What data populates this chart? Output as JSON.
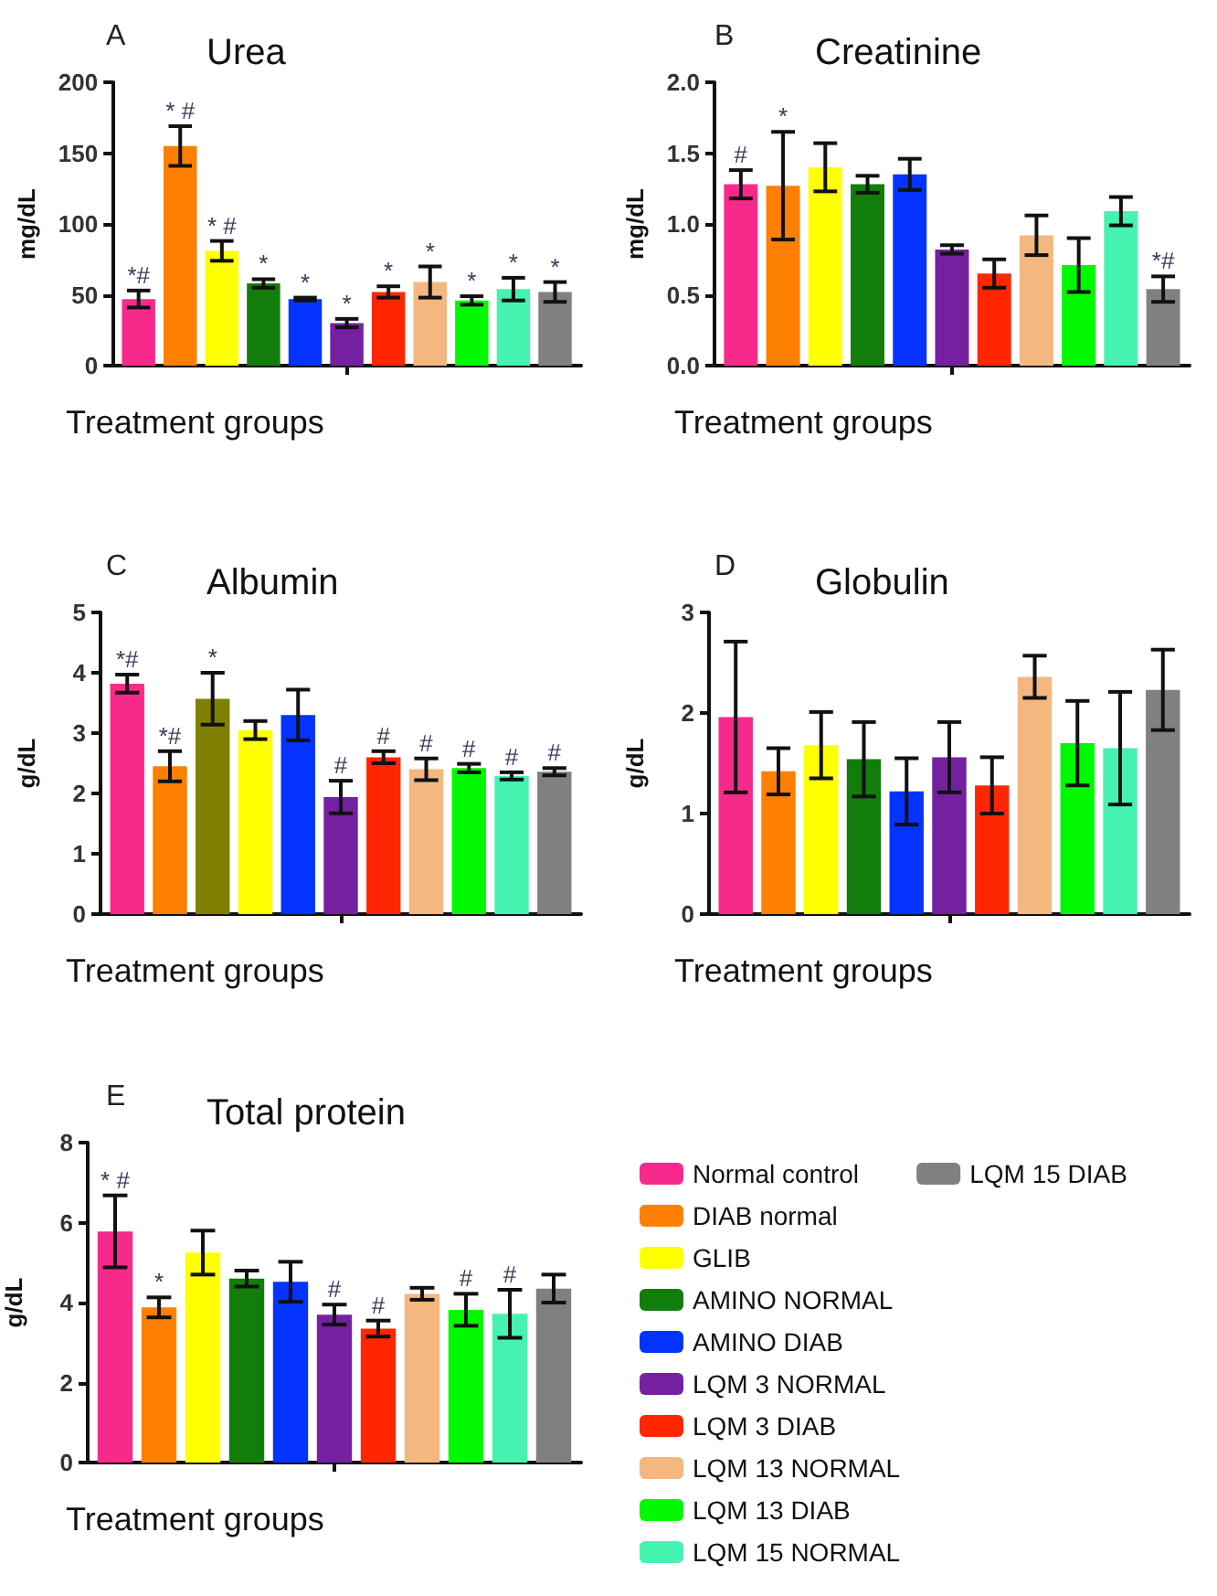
{
  "chart_data": [
    {
      "type": "bar",
      "title": "Urea",
      "ylabel": "mg/dL",
      "xlabel": "Treatment groups",
      "annotations": [
        "A"
      ],
      "categories": [
        null
      ],
      "tick_labels": "y",
      "ylim": [
        0,
        200
      ],
      "yticks": [
        0,
        50,
        100,
        150,
        200
      ],
      "series": [
        {
          "color": "#f72a8c",
          "values": [
            47
          ],
          "errors": [
            6
          ],
          "value_labels": [
            "*#"
          ]
        },
        {
          "color": "#ff7f00",
          "values": [
            155
          ],
          "errors": [
            14
          ],
          "value_labels": [
            "* #"
          ]
        },
        {
          "color": "#ffff00",
          "values": [
            81
          ],
          "errors": [
            7
          ],
          "value_labels": [
            "* #"
          ]
        },
        {
          "color": "#137d0b",
          "values": [
            58
          ],
          "errors": [
            3
          ],
          "value_labels": [
            "*"
          ]
        },
        {
          "color": "#0433ff",
          "values": [
            47
          ],
          "errors": [
            1
          ],
          "value_labels": [
            "*"
          ]
        },
        {
          "color": "#7520a0",
          "values": [
            30
          ],
          "errors": [
            3
          ],
          "value_labels": [
            "*"
          ]
        },
        {
          "color": "#ff2600",
          "values": [
            52
          ],
          "errors": [
            4
          ],
          "value_labels": [
            "*"
          ]
        },
        {
          "color": "#f4b77f",
          "values": [
            59
          ],
          "errors": [
            11
          ],
          "value_labels": [
            "*"
          ]
        },
        {
          "color": "#00f900",
          "values": [
            46
          ],
          "errors": [
            3
          ],
          "value_labels": [
            "*"
          ]
        },
        {
          "color": "#45f2b0",
          "values": [
            54
          ],
          "errors": [
            8
          ],
          "value_labels": [
            "*"
          ]
        },
        {
          "color": "#808080",
          "values": [
            52
          ],
          "errors": [
            7
          ],
          "value_labels": [
            "*"
          ]
        }
      ]
    },
    {
      "type": "bar",
      "title": "Creatinine",
      "ylabel": "mg/dL",
      "xlabel": "Treatment groups",
      "annotations": [
        "B"
      ],
      "categories": [
        null
      ],
      "tick_labels": "y",
      "ylim": [
        0,
        2
      ],
      "yticks": [
        {
          "value": 0,
          "label": "0.0"
        },
        {
          "value": 0.5,
          "label": "0.5"
        },
        {
          "value": 1,
          "label": "1.0"
        },
        {
          "value": 1.5,
          "label": "1.5"
        },
        {
          "value": 2,
          "label": "2.0"
        }
      ],
      "series": [
        {
          "color": "#f72a8c",
          "values": [
            1.28
          ],
          "errors": [
            0.1
          ],
          "value_labels": [
            "#"
          ]
        },
        {
          "color": "#ff7f00",
          "values": [
            1.27
          ],
          "errors": [
            0.38
          ],
          "value_labels": [
            "*"
          ]
        },
        {
          "color": "#ffff00",
          "values": [
            1.4
          ],
          "errors": [
            0.17
          ]
        },
        {
          "color": "#137d0b",
          "values": [
            1.28
          ],
          "errors": [
            0.06
          ]
        },
        {
          "color": "#0433ff",
          "values": [
            1.35
          ],
          "errors": [
            0.11
          ]
        },
        {
          "color": "#7520a0",
          "values": [
            0.82
          ],
          "errors": [
            0.03
          ]
        },
        {
          "color": "#ff2600",
          "values": [
            0.65
          ],
          "errors": [
            0.1
          ]
        },
        {
          "color": "#f4b77f",
          "values": [
            0.92
          ],
          "errors": [
            0.14
          ]
        },
        {
          "color": "#00f900",
          "values": [
            0.71
          ],
          "errors": [
            0.19
          ]
        },
        {
          "color": "#45f2b0",
          "values": [
            1.09
          ],
          "errors": [
            0.1
          ]
        },
        {
          "color": "#808080",
          "values": [
            0.54
          ],
          "errors": [
            0.09
          ],
          "value_labels": [
            "*#"
          ]
        }
      ]
    },
    {
      "type": "bar",
      "title": "Albumin",
      "ylabel": "g/dL",
      "xlabel": "Treatment groups",
      "annotations": [
        "C"
      ],
      "categories": [
        null
      ],
      "tick_labels": "y",
      "ylim": [
        0,
        5
      ],
      "yticks": [
        0,
        1,
        2,
        3,
        4,
        5
      ],
      "series": [
        {
          "color": "#f72a8c",
          "values": [
            3.82
          ],
          "errors": [
            0.15
          ],
          "value_labels": [
            "*#"
          ]
        },
        {
          "color": "#ff7f00",
          "values": [
            2.45
          ],
          "errors": [
            0.25
          ],
          "value_labels": [
            "*#"
          ]
        },
        {
          "color": "#808000",
          "values": [
            3.57
          ],
          "errors": [
            0.43
          ],
          "value_labels": [
            "*"
          ]
        },
        {
          "color": "#ffff00",
          "values": [
            3.05
          ],
          "errors": [
            0.15
          ]
        },
        {
          "color": "#0433ff",
          "values": [
            3.3
          ],
          "errors": [
            0.42
          ]
        },
        {
          "color": "#7520a0",
          "values": [
            1.94
          ],
          "errors": [
            0.27
          ],
          "value_labels": [
            "#"
          ]
        },
        {
          "color": "#ff2600",
          "values": [
            2.6
          ],
          "errors": [
            0.1
          ],
          "value_labels": [
            "#"
          ]
        },
        {
          "color": "#f4b77f",
          "values": [
            2.4
          ],
          "errors": [
            0.18
          ],
          "value_labels": [
            "#"
          ]
        },
        {
          "color": "#00f900",
          "values": [
            2.42
          ],
          "errors": [
            0.07
          ],
          "value_labels": [
            "#"
          ]
        },
        {
          "color": "#45f2b0",
          "values": [
            2.29
          ],
          "errors": [
            0.06
          ],
          "value_labels": [
            "#"
          ]
        },
        {
          "color": "#808080",
          "values": [
            2.36
          ],
          "errors": [
            0.06
          ],
          "value_labels": [
            "#"
          ]
        }
      ]
    },
    {
      "type": "bar",
      "title": "Globulin",
      "ylabel": "g/dL",
      "xlabel": "Treatment groups",
      "annotations": [
        "D"
      ],
      "categories": [
        null
      ],
      "tick_labels": "y",
      "ylim": [
        0,
        3
      ],
      "yticks": [
        0,
        1,
        2,
        3
      ],
      "series": [
        {
          "color": "#f72a8c",
          "values": [
            1.96
          ],
          "errors": [
            0.75
          ]
        },
        {
          "color": "#ff7f00",
          "values": [
            1.42
          ],
          "errors": [
            0.23
          ]
        },
        {
          "color": "#ffff00",
          "values": [
            1.68
          ],
          "errors": [
            0.33
          ]
        },
        {
          "color": "#137d0b",
          "values": [
            1.54
          ],
          "errors": [
            0.37
          ]
        },
        {
          "color": "#0433ff",
          "values": [
            1.22
          ],
          "errors": [
            0.33
          ]
        },
        {
          "color": "#7520a0",
          "values": [
            1.56
          ],
          "errors": [
            0.35
          ]
        },
        {
          "color": "#ff2600",
          "values": [
            1.28
          ],
          "errors": [
            0.28
          ]
        },
        {
          "color": "#f4b77f",
          "values": [
            2.36
          ],
          "errors": [
            0.21
          ]
        },
        {
          "color": "#00f900",
          "values": [
            1.7
          ],
          "errors": [
            0.42
          ]
        },
        {
          "color": "#45f2b0",
          "values": [
            1.65
          ],
          "errors": [
            0.56
          ]
        },
        {
          "color": "#808080",
          "values": [
            2.23
          ],
          "errors": [
            0.4
          ]
        }
      ]
    },
    {
      "type": "bar",
      "title": "Total protein",
      "ylabel": "g/dL",
      "xlabel": "Treatment groups",
      "annotations": [
        "E"
      ],
      "categories": [
        null
      ],
      "tick_labels": "y",
      "ylim": [
        0,
        8
      ],
      "yticks": [
        0,
        2,
        4,
        6,
        8
      ],
      "legend": "right",
      "series": [
        {
          "name": "Normal control",
          "color": "#f72a8c",
          "values": [
            5.78
          ],
          "errors": [
            0.9
          ],
          "value_labels": [
            "* #"
          ]
        },
        {
          "name": "DIAB normal",
          "color": "#ff7f00",
          "values": [
            3.88
          ],
          "errors": [
            0.25
          ],
          "value_labels": [
            "*"
          ]
        },
        {
          "name": "GLIB",
          "color": "#ffff00",
          "values": [
            5.25
          ],
          "errors": [
            0.55
          ]
        },
        {
          "name": "AMINO NORMAL",
          "color": "#137d0b",
          "values": [
            4.6
          ],
          "errors": [
            0.2
          ]
        },
        {
          "name": "AMINO DIAB",
          "color": "#0433ff",
          "values": [
            4.52
          ],
          "errors": [
            0.5
          ]
        },
        {
          "name": "LQM 3 NORMAL",
          "color": "#7520a0",
          "values": [
            3.7
          ],
          "errors": [
            0.25
          ],
          "value_labels": [
            "#"
          ]
        },
        {
          "name": "LQM 3 DIAB",
          "color": "#ff2600",
          "values": [
            3.35
          ],
          "errors": [
            0.2
          ],
          "value_labels": [
            "#"
          ]
        },
        {
          "name": "LQM 13 NORMAL",
          "color": "#f4b77f",
          "values": [
            4.22
          ],
          "errors": [
            0.15
          ]
        },
        {
          "name": "LQM 13 DIAB",
          "color": "#00f900",
          "values": [
            3.82
          ],
          "errors": [
            0.4
          ],
          "value_labels": [
            "#"
          ]
        },
        {
          "name": "LQM 15 NORMAL",
          "color": "#45f2b0",
          "values": [
            3.72
          ],
          "errors": [
            0.6
          ],
          "value_labels": [
            "#"
          ]
        },
        {
          "name": "LQM 15 DIAB",
          "color": "#808080",
          "values": [
            4.35
          ],
          "errors": [
            0.35
          ]
        }
      ]
    }
  ]
}
